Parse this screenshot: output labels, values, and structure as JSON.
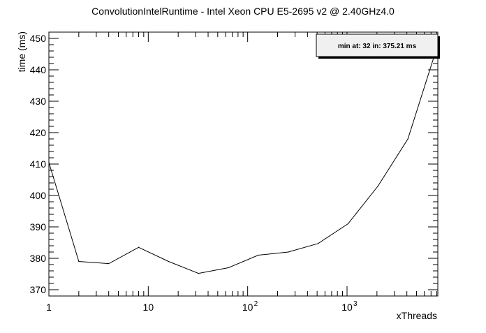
{
  "chart_data": {
    "type": "line",
    "title": "ConvolutionIntelRuntime - Intel Xeon CPU E5-2695 v2 @ 2.40GHz4.0",
    "xlabel": "xThreads",
    "ylabel": "time (ms)",
    "x_scale": "log",
    "xlim": [
      1,
      8192
    ],
    "ylim": [
      368,
      452
    ],
    "grid": false,
    "x_ticks": [
      {
        "value": 1,
        "label": "1"
      },
      {
        "value": 10,
        "label": "10"
      },
      {
        "value": 100,
        "label": "10",
        "exp": "2"
      },
      {
        "value": 1000,
        "label": "10",
        "exp": "3"
      }
    ],
    "y_ticks": [
      {
        "value": 370,
        "label": "370"
      },
      {
        "value": 380,
        "label": "380"
      },
      {
        "value": 390,
        "label": "390"
      },
      {
        "value": 400,
        "label": "400"
      },
      {
        "value": 410,
        "label": "410"
      },
      {
        "value": 420,
        "label": "420"
      },
      {
        "value": 430,
        "label": "430"
      },
      {
        "value": 440,
        "label": "440"
      },
      {
        "value": 450,
        "label": "450"
      }
    ],
    "series": [
      {
        "x": [
          1,
          2,
          4,
          8,
          16,
          32,
          64,
          128,
          256,
          512,
          1024,
          2048,
          4096,
          8192
        ],
        "y": [
          410.5,
          379.0,
          378.3,
          383.5,
          379.0,
          375.2,
          377.0,
          381.0,
          382.0,
          384.7,
          391.0,
          403.0,
          418.0,
          448.0
        ]
      }
    ],
    "annotation": "min at: 32 in: 375.21 ms",
    "annotation_position": "top-right"
  }
}
